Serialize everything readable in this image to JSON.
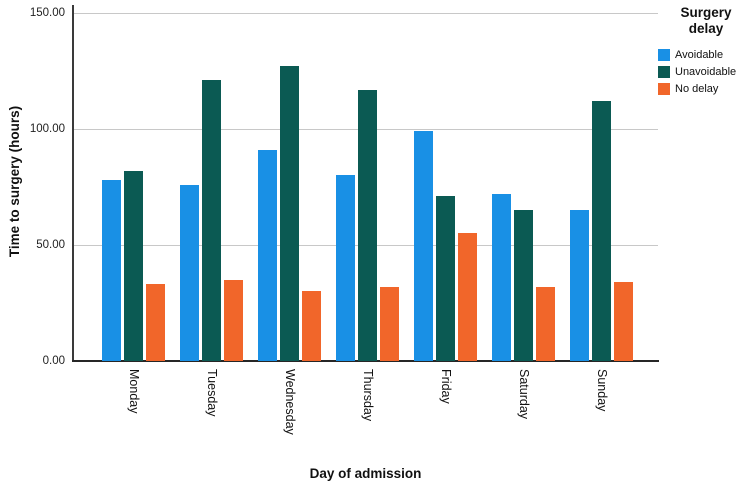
{
  "chart_data": {
    "type": "bar",
    "title": "",
    "xlabel": "Day of admission",
    "ylabel": "Time to surgery (hours)",
    "categories": [
      "Monday",
      "Tuesday",
      "Wednesday",
      "Thursday",
      "Friday",
      "Saturday",
      "Sunday"
    ],
    "series": [
      {
        "name": "Avoidable",
        "color": "#1990E5",
        "values": [
          78,
          76,
          91,
          80,
          99,
          72,
          65
        ]
      },
      {
        "name": "Unavoidable",
        "color": "#0B5A53",
        "values": [
          82,
          121,
          127,
          117,
          71,
          65,
          112
        ]
      },
      {
        "name": "No delay",
        "color": "#F1662A",
        "values": [
          33,
          35,
          30,
          32,
          55,
          32,
          34
        ]
      }
    ],
    "ylim": [
      0,
      150
    ],
    "yticks": [
      {
        "label": "0.00",
        "value": 0
      },
      {
        "label": "50.00",
        "value": 50
      },
      {
        "label": "100.00",
        "value": 100
      },
      {
        "label": "150.00",
        "value": 150
      }
    ],
    "gridline_values": [
      50,
      100,
      150
    ],
    "grid": true,
    "legend_title": "Surgery delay",
    "legend_position": "top-right",
    "axis_color": "#333333",
    "gridline_color": "#c8c8c8"
  }
}
